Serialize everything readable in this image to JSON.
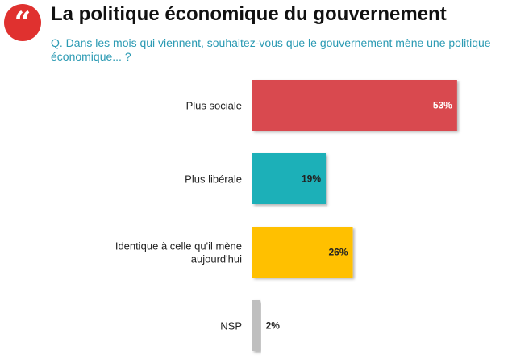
{
  "header": {
    "quote_glyph": "“",
    "title": "La politique économique du gouvernement",
    "question": "Q. Dans les mois qui viennent, souhaitez-vous que le gouvernement mène une politique économique... ?"
  },
  "colors": {
    "quote_badge": "#e0312f",
    "question_text": "#2b9ab3"
  },
  "chart_data": {
    "type": "bar",
    "orientation": "horizontal",
    "title": "",
    "xlabel": "",
    "ylabel": "",
    "grid": false,
    "categories": [
      [
        "Plus sociale"
      ],
      [
        "Plus libérale"
      ],
      [
        "Identique à celle qu'il mène",
        "aujourd'hui"
      ],
      [
        "NSP"
      ]
    ],
    "values": [
      53,
      19,
      26,
      2
    ],
    "value_labels": [
      "53%",
      "19%",
      "26%",
      "2%"
    ],
    "colors": [
      "#d94a4f",
      "#1ab0b8",
      "#ffc000",
      "#bfbfbf"
    ],
    "label_colors": [
      "#ffffff",
      "#222222",
      "#222222",
      "#222222"
    ],
    "xlim": [
      0,
      100
    ]
  }
}
